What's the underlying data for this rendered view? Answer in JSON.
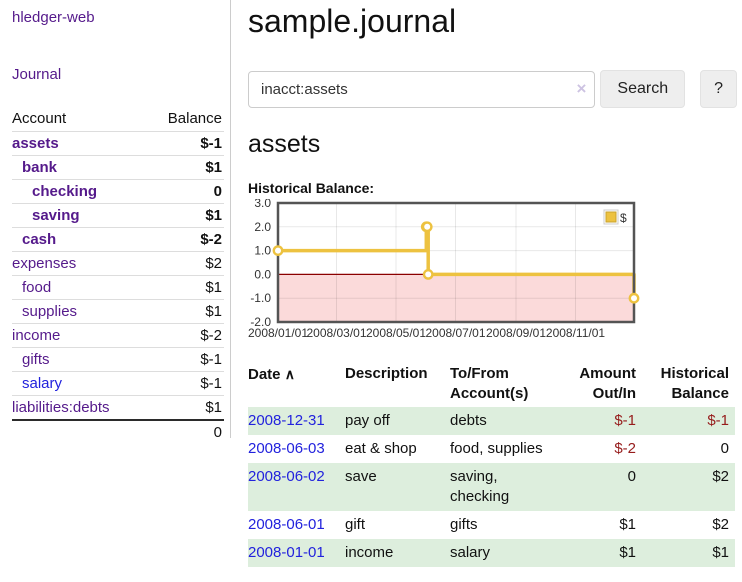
{
  "colors": {
    "link_purple": "#551A8B",
    "link_blue": "#2222dd",
    "negative_strong": "#961c1c",
    "negative_soft": "#c17d7d",
    "row_stripe_green": "#ddeedd",
    "series_gold": "#EDC240"
  },
  "sidebar": {
    "brand": "hledger-web",
    "journal_link": "Journal",
    "table": {
      "headers": [
        "Account",
        "Balance"
      ]
    },
    "accounts": [
      {
        "name": "assets",
        "depth": 1,
        "strong": true,
        "balance": "$-1",
        "neg": "strong"
      },
      {
        "name": "bank",
        "depth": 2,
        "strong": true,
        "balance": "$1",
        "neg": "none"
      },
      {
        "name": "checking",
        "depth": 3,
        "strong": true,
        "balance": "0",
        "neg": "none"
      },
      {
        "name": "saving",
        "depth": 3,
        "strong": true,
        "balance": "$1",
        "neg": "none"
      },
      {
        "name": "cash",
        "depth": 2,
        "strong": true,
        "balance": "$-2",
        "neg": "strong"
      },
      {
        "name": "expenses",
        "depth": 1,
        "strong": false,
        "balance": "$2",
        "neg": "none"
      },
      {
        "name": "food",
        "depth": 2,
        "strong": false,
        "balance": "$1",
        "neg": "none"
      },
      {
        "name": "supplies",
        "depth": 2,
        "strong": false,
        "balance": "$1",
        "neg": "none"
      },
      {
        "name": "income",
        "depth": 1,
        "strong": false,
        "balance": "$-2",
        "neg": "soft"
      },
      {
        "name": "gifts",
        "depth": 2,
        "strong": false,
        "balance": "$-1",
        "neg": "soft"
      },
      {
        "name": "salary",
        "depth": 2,
        "strong": false,
        "balance": "$-1",
        "neg": "soft",
        "blue": true
      },
      {
        "name": "liabilities:debts",
        "depth": 1,
        "strong": false,
        "balance": "$1",
        "neg": "none"
      }
    ],
    "total": "0"
  },
  "main": {
    "title": "sample.journal",
    "search": {
      "value": "inacct:assets",
      "clear_icon": "×",
      "button": "Search",
      "help_button": "?"
    },
    "account_heading": "assets",
    "chart_label": "Historical Balance:"
  },
  "chart_data": {
    "type": "line",
    "title": "Historical Balance",
    "step": true,
    "series": [
      {
        "name": "$",
        "color": "#EDC240",
        "points": [
          [
            "2008-01-01",
            1
          ],
          [
            "2008-06-01",
            2
          ],
          [
            "2008-06-02",
            2
          ],
          [
            "2008-06-03",
            0
          ],
          [
            "2008-12-31",
            -1
          ]
        ]
      }
    ],
    "xlim": [
      "2008-01-01",
      "2008-12-31"
    ],
    "ylim": [
      -2,
      3
    ],
    "y_ticks": [
      {
        "v": 3,
        "label": "3.0"
      },
      {
        "v": 2,
        "label": "2.0"
      },
      {
        "v": 1,
        "label": "1.0"
      },
      {
        "v": 0,
        "label": "0.0"
      },
      {
        "v": -1,
        "label": "-1.0"
      },
      {
        "v": -2,
        "label": "-2.0"
      }
    ],
    "x_ticks": [
      {
        "date": "2008-01-01",
        "label": "2008/01/01"
      },
      {
        "date": "2008-03-01",
        "label": "2008/03/01"
      },
      {
        "date": "2008-05-01",
        "label": "2008/05/01"
      },
      {
        "date": "2008-07-01",
        "label": "2008/07/01"
      },
      {
        "date": "2008-09-01",
        "label": "2008/09/01"
      },
      {
        "date": "2008-11-01",
        "label": "2008/11/01"
      }
    ],
    "grid": true,
    "legend": {
      "label": "$",
      "position": "top-right"
    },
    "negative_region_color": "#fbdada",
    "zero_line_color": "#8b0000",
    "border_color": "#545454"
  },
  "transactions": {
    "headers": [
      "Date",
      "Description",
      "To/From Account(s)",
      "Amount Out/In",
      "Historical Balance"
    ],
    "sort_icon": "∧",
    "rows": [
      {
        "date": "2008-12-31",
        "description": "pay off",
        "accounts": "debts",
        "amount": "$-1",
        "amount_neg": true,
        "balance": "$-1",
        "balance_neg": true
      },
      {
        "date": "2008-06-03",
        "description": "eat & shop",
        "accounts": "food, supplies",
        "amount": "$-2",
        "amount_neg": true,
        "balance": "0",
        "balance_neg": false
      },
      {
        "date": "2008-06-02",
        "description": "save",
        "accounts": "saving, checking",
        "amount": "0",
        "amount_neg": false,
        "balance": "$2",
        "balance_neg": false
      },
      {
        "date": "2008-06-01",
        "description": "gift",
        "accounts": "gifts",
        "amount": "$1",
        "amount_neg": false,
        "balance": "$2",
        "balance_neg": false
      },
      {
        "date": "2008-01-01",
        "description": "income",
        "accounts": "salary",
        "amount": "$1",
        "amount_neg": false,
        "balance": "$1",
        "balance_neg": false
      }
    ]
  }
}
